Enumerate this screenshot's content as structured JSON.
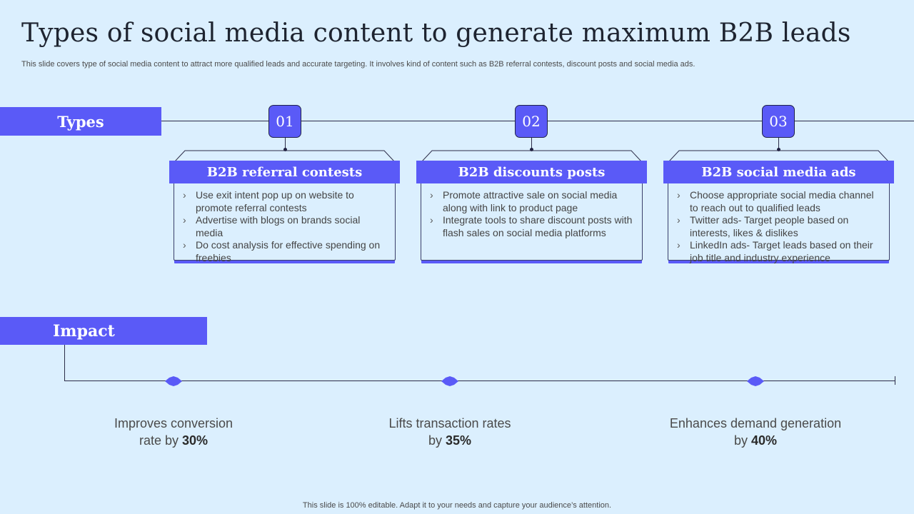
{
  "title": "Types of social media content to generate maximum B2B leads",
  "subtitle": "This slide covers type of social media content to attract more qualified leads and accurate targeting. It involves kind of content such as B2B referral contests, discount posts and social  media ads.",
  "types_label": "Types",
  "impact_label": "Impact",
  "colors": {
    "accent": "#5a5af7",
    "background": "#dbeffe",
    "line": "#2c2c48"
  },
  "types": [
    {
      "number": "01",
      "heading": "B2B referral contests",
      "bullets": [
        "Use exit intent pop up on website to promote referral contests",
        "Advertise with blogs on brands social media",
        "Do cost analysis for effective spending on freebies"
      ]
    },
    {
      "number": "02",
      "heading": "B2B discounts posts",
      "bullets": [
        "Promote attractive sale on social media along with link to product page",
        "Integrate tools to share discount posts with flash sales on social media platforms"
      ]
    },
    {
      "number": "03",
      "heading": "B2B social media ads",
      "bullets": [
        "Choose appropriate social media channel to reach out to qualified leads",
        "Twitter ads- Target people based on interests, likes & dislikes",
        "LinkedIn ads-  Target leads based on their job title and industry experience"
      ]
    }
  ],
  "impacts": [
    {
      "line1": "Improves conversion",
      "line2_prefix": "rate by ",
      "value": "30%"
    },
    {
      "line1": "Lifts transaction rates",
      "line2_prefix": "by ",
      "value": "35%"
    },
    {
      "line1": "Enhances demand generation",
      "line2_prefix": "by ",
      "value": "40%"
    }
  ],
  "footer": "This slide is 100% editable. Adapt it to your needs and capture your audience’s attention."
}
